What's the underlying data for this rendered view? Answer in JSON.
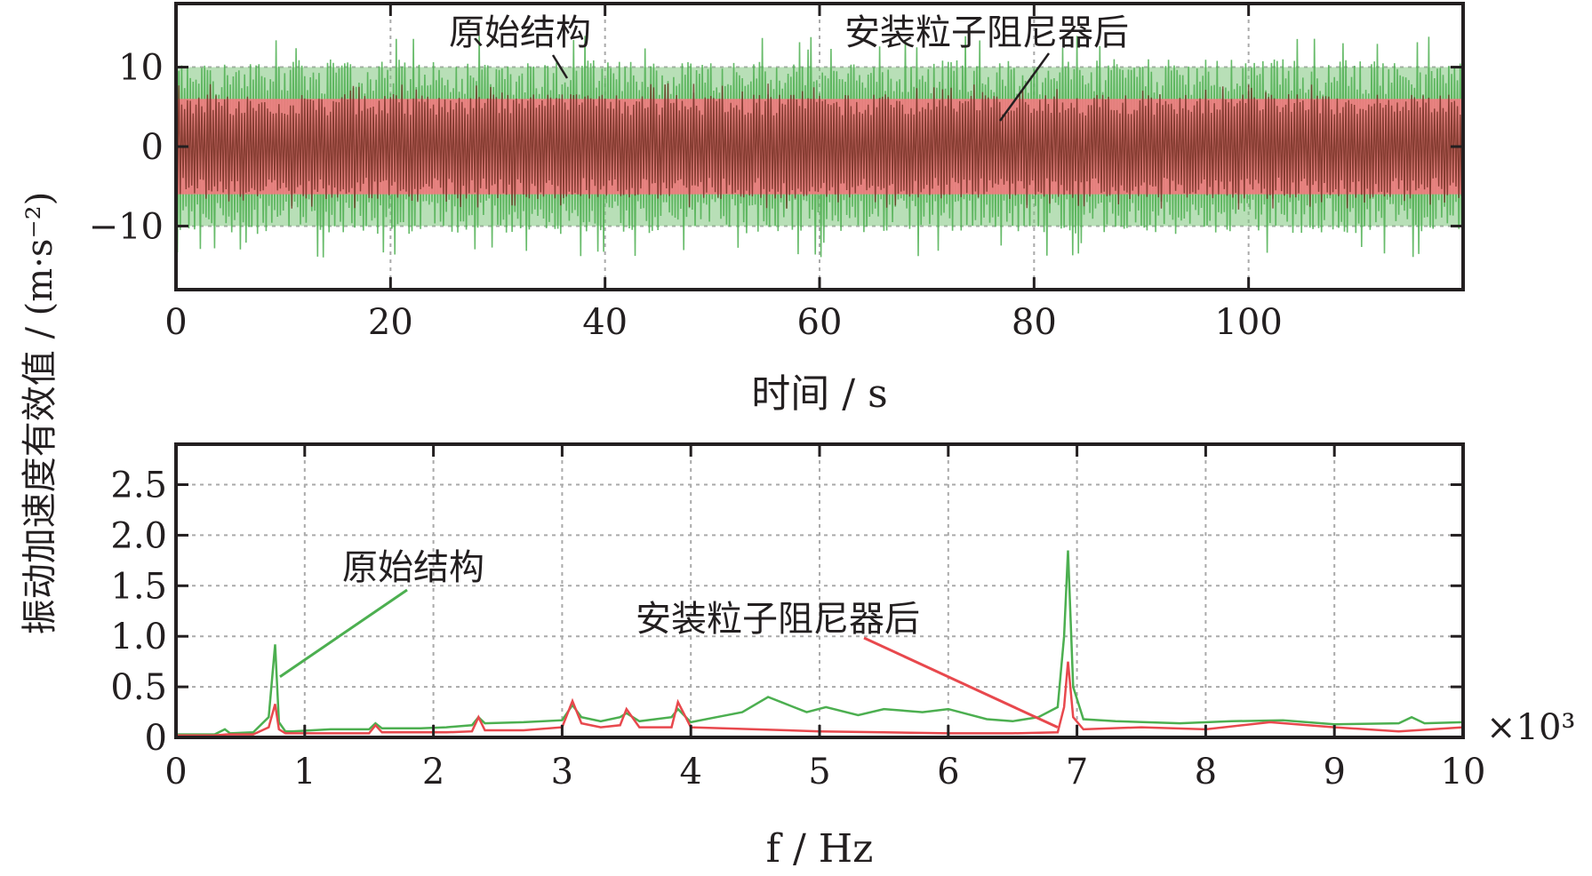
{
  "ylabel": "振动加速度有效值 / (m·s⁻²)",
  "colors": {
    "original": "#4caf50",
    "original_fill": "#7ec47c",
    "damper": "#e8484d",
    "damper_fill": "#f27a80",
    "damper_dark": "#6e2c1f",
    "grid": "#aaaaaa",
    "frame": "#231f20"
  },
  "chart_data": [
    {
      "type": "line",
      "xlabel": "时间 / s",
      "ylabel": "振动加速度有效值 / (m·s⁻²)",
      "xlim": [
        0,
        120
      ],
      "ylim": [
        -18,
        18
      ],
      "xticks": [
        0,
        20,
        40,
        60,
        80,
        100
      ],
      "yticks": [
        -10,
        0,
        10
      ],
      "grid": true,
      "series": [
        {
          "name": "原始结构",
          "envelope_upper": 10,
          "envelope_lower": -10,
          "peak_abs": 14
        },
        {
          "name": "安装粒子阻尼器后",
          "envelope_upper": 6,
          "envelope_lower": -6,
          "peak_abs": 8
        }
      ],
      "annotations": [
        {
          "text": "原始结构",
          "target_x": 37,
          "target_y": 8
        },
        {
          "text": "安装粒子阻尼器后",
          "target_x": 77,
          "target_y": 3
        }
      ]
    },
    {
      "type": "line",
      "xlabel": "f / Hz",
      "xlim": [
        0,
        10
      ],
      "ylim": [
        0,
        2.9
      ],
      "xticks": [
        0,
        1,
        2,
        3,
        4,
        5,
        6,
        7,
        8,
        9,
        10
      ],
      "yticks": [
        0,
        0.5,
        1.0,
        1.5,
        2.0,
        2.5
      ],
      "xticklabels": [
        "0",
        "1",
        "2",
        "3",
        "4",
        "5",
        "6",
        "7",
        "8",
        "9",
        "10"
      ],
      "yticklabels": [
        "0",
        "0.5",
        "1.0",
        "1.5",
        "2.0",
        "2.5"
      ],
      "x_multiplier": "×10³",
      "grid": true,
      "series": [
        {
          "name": "原始结构",
          "x": [
            0,
            0.3,
            0.38,
            0.42,
            0.6,
            0.72,
            0.77,
            0.8,
            0.85,
            0.9,
            1.2,
            1.5,
            1.55,
            1.6,
            1.9,
            2.1,
            2.3,
            2.35,
            2.4,
            2.7,
            3.0,
            3.08,
            3.15,
            3.3,
            3.45,
            3.5,
            3.6,
            3.85,
            3.9,
            4.0,
            4.2,
            4.4,
            4.6,
            4.7,
            4.9,
            5.05,
            5.3,
            5.5,
            5.8,
            6.0,
            6.3,
            6.5,
            6.7,
            6.85,
            6.9,
            6.93,
            6.97,
            7.05,
            7.3,
            7.8,
            8.2,
            8.6,
            9.0,
            9.5,
            9.6,
            9.7,
            10
          ],
          "y": [
            0.03,
            0.03,
            0.08,
            0.04,
            0.05,
            0.2,
            0.92,
            0.15,
            0.06,
            0.06,
            0.08,
            0.08,
            0.14,
            0.09,
            0.09,
            0.1,
            0.12,
            0.2,
            0.14,
            0.15,
            0.17,
            0.32,
            0.2,
            0.16,
            0.2,
            0.24,
            0.16,
            0.2,
            0.28,
            0.15,
            0.2,
            0.25,
            0.4,
            0.35,
            0.25,
            0.3,
            0.22,
            0.28,
            0.25,
            0.28,
            0.18,
            0.16,
            0.2,
            0.3,
            1.0,
            1.85,
            0.5,
            0.18,
            0.16,
            0.14,
            0.16,
            0.17,
            0.13,
            0.14,
            0.2,
            0.14,
            0.15
          ]
        },
        {
          "name": "安装粒子阻尼器后",
          "x": [
            0,
            0.3,
            0.4,
            0.6,
            0.72,
            0.77,
            0.8,
            0.85,
            1.2,
            1.5,
            1.55,
            1.6,
            2.1,
            2.3,
            2.35,
            2.4,
            2.7,
            3.0,
            3.08,
            3.15,
            3.3,
            3.45,
            3.5,
            3.6,
            3.85,
            3.9,
            4.0,
            4.5,
            5.0,
            5.5,
            6.0,
            6.5,
            6.85,
            6.9,
            6.93,
            6.97,
            7.05,
            7.5,
            8.0,
            8.5,
            9.0,
            9.5,
            10
          ],
          "y": [
            0.02,
            0.02,
            0.03,
            0.03,
            0.1,
            0.33,
            0.08,
            0.04,
            0.04,
            0.04,
            0.12,
            0.05,
            0.05,
            0.06,
            0.2,
            0.07,
            0.07,
            0.1,
            0.36,
            0.14,
            0.1,
            0.12,
            0.28,
            0.1,
            0.1,
            0.35,
            0.1,
            0.08,
            0.06,
            0.05,
            0.04,
            0.04,
            0.05,
            0.3,
            0.75,
            0.2,
            0.08,
            0.1,
            0.08,
            0.15,
            0.1,
            0.06,
            0.1
          ]
        }
      ],
      "annotations": [
        {
          "text": "原始结构",
          "target_x": 0.78,
          "target_y": 0.6
        },
        {
          "text": "安装粒子阻尼器后",
          "target_x": 6.85,
          "target_y": 0.1
        }
      ]
    }
  ]
}
